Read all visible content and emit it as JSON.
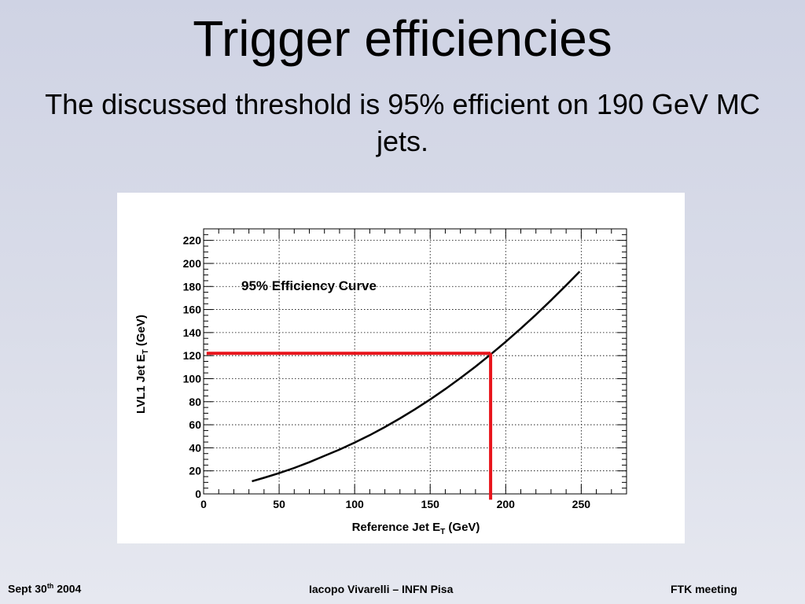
{
  "slide": {
    "title": "Trigger efficiencies",
    "subtitle": "The discussed threshold is 95% efficient on 190 GeV MC jets."
  },
  "footer": {
    "date_prefix": "Sept 30",
    "date_sup": "th",
    "date_suffix": " 2004",
    "author": "Iacopo Vivarelli – INFN Pisa",
    "event": "FTK meeting"
  },
  "colors": {
    "curve": "#000000",
    "threshold_marker": "#e8141b",
    "grid": "#000000"
  },
  "chart_data": {
    "type": "line",
    "annotation": "95% Efficiency Curve",
    "xlabel": "Reference Jet E",
    "xlabel_sub": "T",
    "xlabel_suffix": " (GeV)",
    "ylabel": "LVL1 Jet E",
    "ylabel_sub": "T",
    "ylabel_suffix": " (GeV)",
    "xlim": [
      0,
      280
    ],
    "ylim": [
      0,
      230
    ],
    "xticks": [
      0,
      50,
      100,
      150,
      200,
      250
    ],
    "yticks": [
      0,
      20,
      40,
      60,
      80,
      100,
      120,
      140,
      160,
      180,
      200,
      220
    ],
    "grid": true,
    "series": [
      {
        "x": [
          32,
          40,
          50,
          60,
          70,
          80,
          90,
          100,
          110,
          120,
          130,
          140,
          150,
          160,
          170,
          180,
          190,
          200,
          210,
          220,
          230,
          240,
          249
        ],
        "y": [
          11,
          14,
          18,
          22.5,
          27.5,
          33,
          38.5,
          44.5,
          51,
          58,
          65.5,
          73.5,
          82,
          91,
          100.5,
          110.5,
          121,
          132,
          143.5,
          155.5,
          168,
          181,
          193
        ]
      }
    ],
    "threshold_lines": [
      {
        "x_from": 2,
        "x_to": 190,
        "y": 122
      },
      {
        "x": 190,
        "y_from": 122,
        "y_to": -5
      }
    ]
  }
}
